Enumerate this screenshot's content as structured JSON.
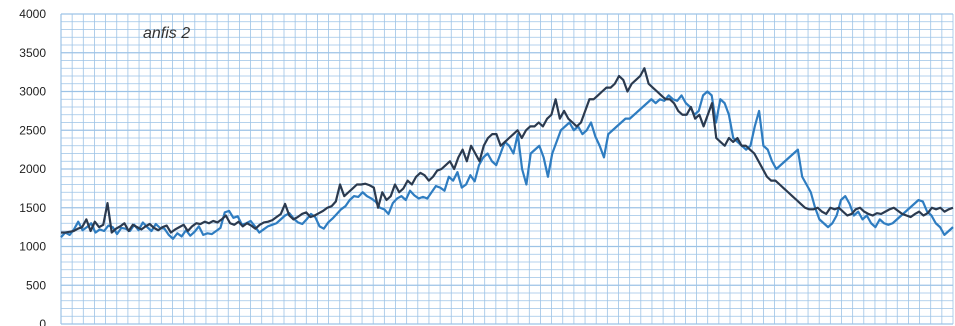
{
  "chart_data": {
    "type": "line",
    "title": "",
    "xlabel": "",
    "ylabel": "",
    "ylim": [
      0,
      4000
    ],
    "yticks": [
      "0",
      "500",
      "1000",
      "1500",
      "2000",
      "2500",
      "3000",
      "3500",
      "4000"
    ],
    "grid": true,
    "annotation": "anfis 2",
    "colors": {
      "series_a": "#2f7dc1",
      "series_b": "#2b3a4f",
      "grid": "#9dc3e6",
      "axis": "#9dc3e6"
    },
    "series": [
      {
        "color": "#2f7dc1",
        "values": [
          1120,
          1180,
          1150,
          1220,
          1320,
          1210,
          1250,
          1300,
          1180,
          1220,
          1200,
          1270,
          1250,
          1160,
          1240,
          1230,
          1200,
          1280,
          1210,
          1310,
          1250,
          1200,
          1290,
          1240,
          1230,
          1150,
          1100,
          1170,
          1130,
          1210,
          1140,
          1190,
          1260,
          1150,
          1170,
          1160,
          1200,
          1240,
          1440,
          1460,
          1370,
          1390,
          1280,
          1300,
          1330,
          1260,
          1180,
          1220,
          1260,
          1280,
          1300,
          1350,
          1400,
          1430,
          1360,
          1310,
          1290,
          1350,
          1420,
          1380,
          1260,
          1230,
          1310,
          1360,
          1420,
          1480,
          1520,
          1600,
          1650,
          1640,
          1700,
          1650,
          1620,
          1580,
          1500,
          1480,
          1420,
          1560,
          1620,
          1650,
          1600,
          1720,
          1660,
          1620,
          1640,
          1620,
          1700,
          1780,
          1760,
          1720,
          1900,
          1850,
          1960,
          1760,
          1800,
          1920,
          1840,
          2050,
          2150,
          2200,
          2100,
          2050,
          2200,
          2350,
          2300,
          2200,
          2450,
          2000,
          1800,
          2200,
          2250,
          2300,
          2150,
          1900,
          2200,
          2350,
          2500,
          2550,
          2600,
          2500,
          2550,
          2450,
          2500,
          2600,
          2420,
          2300,
          2150,
          2450,
          2500,
          2550,
          2600,
          2650,
          2650,
          2700,
          2750,
          2800,
          2850,
          2900,
          2850,
          2900,
          2880,
          2950,
          2900,
          2880,
          2950,
          2850,
          2800,
          2700,
          2750,
          2950,
          3000,
          2950,
          2600,
          2900,
          2850,
          2700,
          2400,
          2350,
          2300,
          2250,
          2300,
          2550,
          2750,
          2300,
          2250,
          2100,
          2000,
          2050,
          2100,
          2150,
          2200,
          2250,
          1900,
          1800,
          1700,
          1500,
          1350,
          1300,
          1250,
          1300,
          1400,
          1600,
          1650,
          1550,
          1400,
          1450,
          1350,
          1400,
          1300,
          1250,
          1350,
          1300,
          1280,
          1300,
          1350,
          1400,
          1450,
          1500,
          1550,
          1600,
          1580,
          1450,
          1400,
          1300,
          1250,
          1150,
          1200,
          1250
        ],
        "x_start": 1
      },
      {
        "color": "#2b3a4f",
        "values": [
          1180,
          1180,
          1190,
          1200,
          1230,
          1250,
          1350,
          1200,
          1320,
          1250,
          1280,
          1560,
          1180,
          1230,
          1260,
          1300,
          1200,
          1280,
          1250,
          1220,
          1260,
          1290,
          1240,
          1210,
          1250,
          1270,
          1180,
          1220,
          1250,
          1280,
          1200,
          1260,
          1300,
          1290,
          1320,
          1300,
          1330,
          1310,
          1350,
          1400,
          1300,
          1280,
          1320,
          1260,
          1300,
          1270,
          1230,
          1280,
          1310,
          1320,
          1340,
          1380,
          1420,
          1550,
          1400,
          1350,
          1380,
          1420,
          1440,
          1380,
          1400,
          1430,
          1460,
          1500,
          1520,
          1580,
          1800,
          1650,
          1700,
          1750,
          1800,
          1800,
          1810,
          1790,
          1760,
          1500,
          1700,
          1600,
          1650,
          1800,
          1700,
          1750,
          1850,
          1800,
          1900,
          1950,
          1920,
          1850,
          1900,
          1980,
          2000,
          2050,
          2100,
          2000,
          2150,
          2250,
          2100,
          2300,
          2200,
          2100,
          2300,
          2400,
          2450,
          2450,
          2300,
          2350,
          2400,
          2450,
          2500,
          2400,
          2500,
          2550,
          2550,
          2600,
          2550,
          2650,
          2700,
          2900,
          2650,
          2750,
          2650,
          2600,
          2550,
          2600,
          2750,
          2900,
          2900,
          2950,
          3000,
          3050,
          3050,
          3100,
          3200,
          3150,
          3000,
          3100,
          3150,
          3200,
          3300,
          3100,
          3050,
          3000,
          2950,
          2900,
          2900,
          2850,
          2750,
          2700,
          2700,
          2800,
          2650,
          2700,
          2550,
          2700,
          2850,
          2400,
          2350,
          2300,
          2400,
          2350,
          2400,
          2300,
          2300,
          2250,
          2200,
          2100,
          2000,
          1900,
          1850,
          1850,
          1800,
          1750,
          1700,
          1650,
          1600,
          1550,
          1500,
          1480,
          1480,
          1500,
          1450,
          1420,
          1500,
          1480,
          1500,
          1450,
          1400,
          1420,
          1480,
          1500,
          1450,
          1420,
          1400,
          1430,
          1420,
          1450,
          1480,
          1500,
          1460,
          1420,
          1400,
          1380,
          1420,
          1450,
          1400,
          1430,
          1500,
          1480,
          1500,
          1450,
          1480,
          1500
        ],
        "x_start": 1
      }
    ]
  }
}
